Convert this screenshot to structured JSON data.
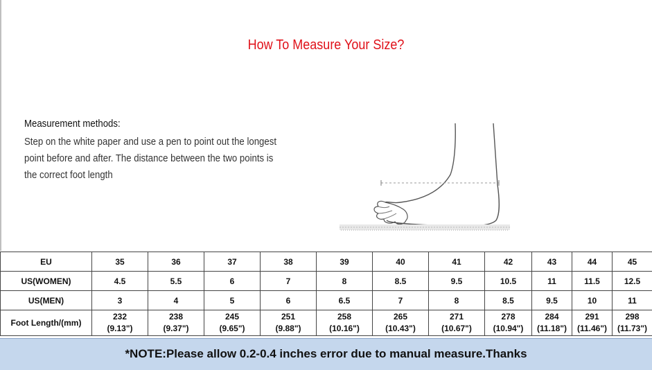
{
  "title": "How To Measure Your Size?",
  "method": {
    "heading": "Measurement methods:",
    "lines": [
      "Step on the white paper and use a pen to point out the longest",
      "point before and after. The distance between the two points is",
      "the correct foot length"
    ]
  },
  "illustration": {
    "icon": "foot-measure-icon"
  },
  "table": {
    "rows": [
      {
        "label": "EU",
        "values": [
          "35",
          "36",
          "37",
          "38",
          "39",
          "40",
          "41",
          "42",
          "43",
          "44",
          "45"
        ]
      },
      {
        "label": "US(WOMEN)",
        "values": [
          "4.5",
          "5.5",
          "6",
          "7",
          "8",
          "8.5",
          "9.5",
          "10.5",
          "11",
          "11.5",
          "12.5"
        ]
      },
      {
        "label": "US(MEN)",
        "values": [
          "3",
          "4",
          "5",
          "6",
          "6.5",
          "7",
          "8",
          "8.5",
          "9.5",
          "10",
          "11"
        ]
      }
    ],
    "foot_length": {
      "label": "Foot Length/(mm)",
      "mm": [
        "232",
        "238",
        "245",
        "251",
        "258",
        "265",
        "271",
        "278",
        "284",
        "291",
        "298"
      ],
      "inches": [
        "(9.13\")",
        "(9.37\")",
        "(9.65\")",
        "(9.88\")",
        "(10.16\")",
        "(10.43\")",
        "(10.67\")",
        "(10.94\")",
        "(11.18\")",
        "(11.46\")",
        "(11.73\")"
      ]
    }
  },
  "note": "*NOTE:Please allow 0.2-0.4 inches error due to manual measure.Thanks",
  "colors": {
    "title": "#e0121a",
    "note_bg": "#c5d7ed"
  }
}
